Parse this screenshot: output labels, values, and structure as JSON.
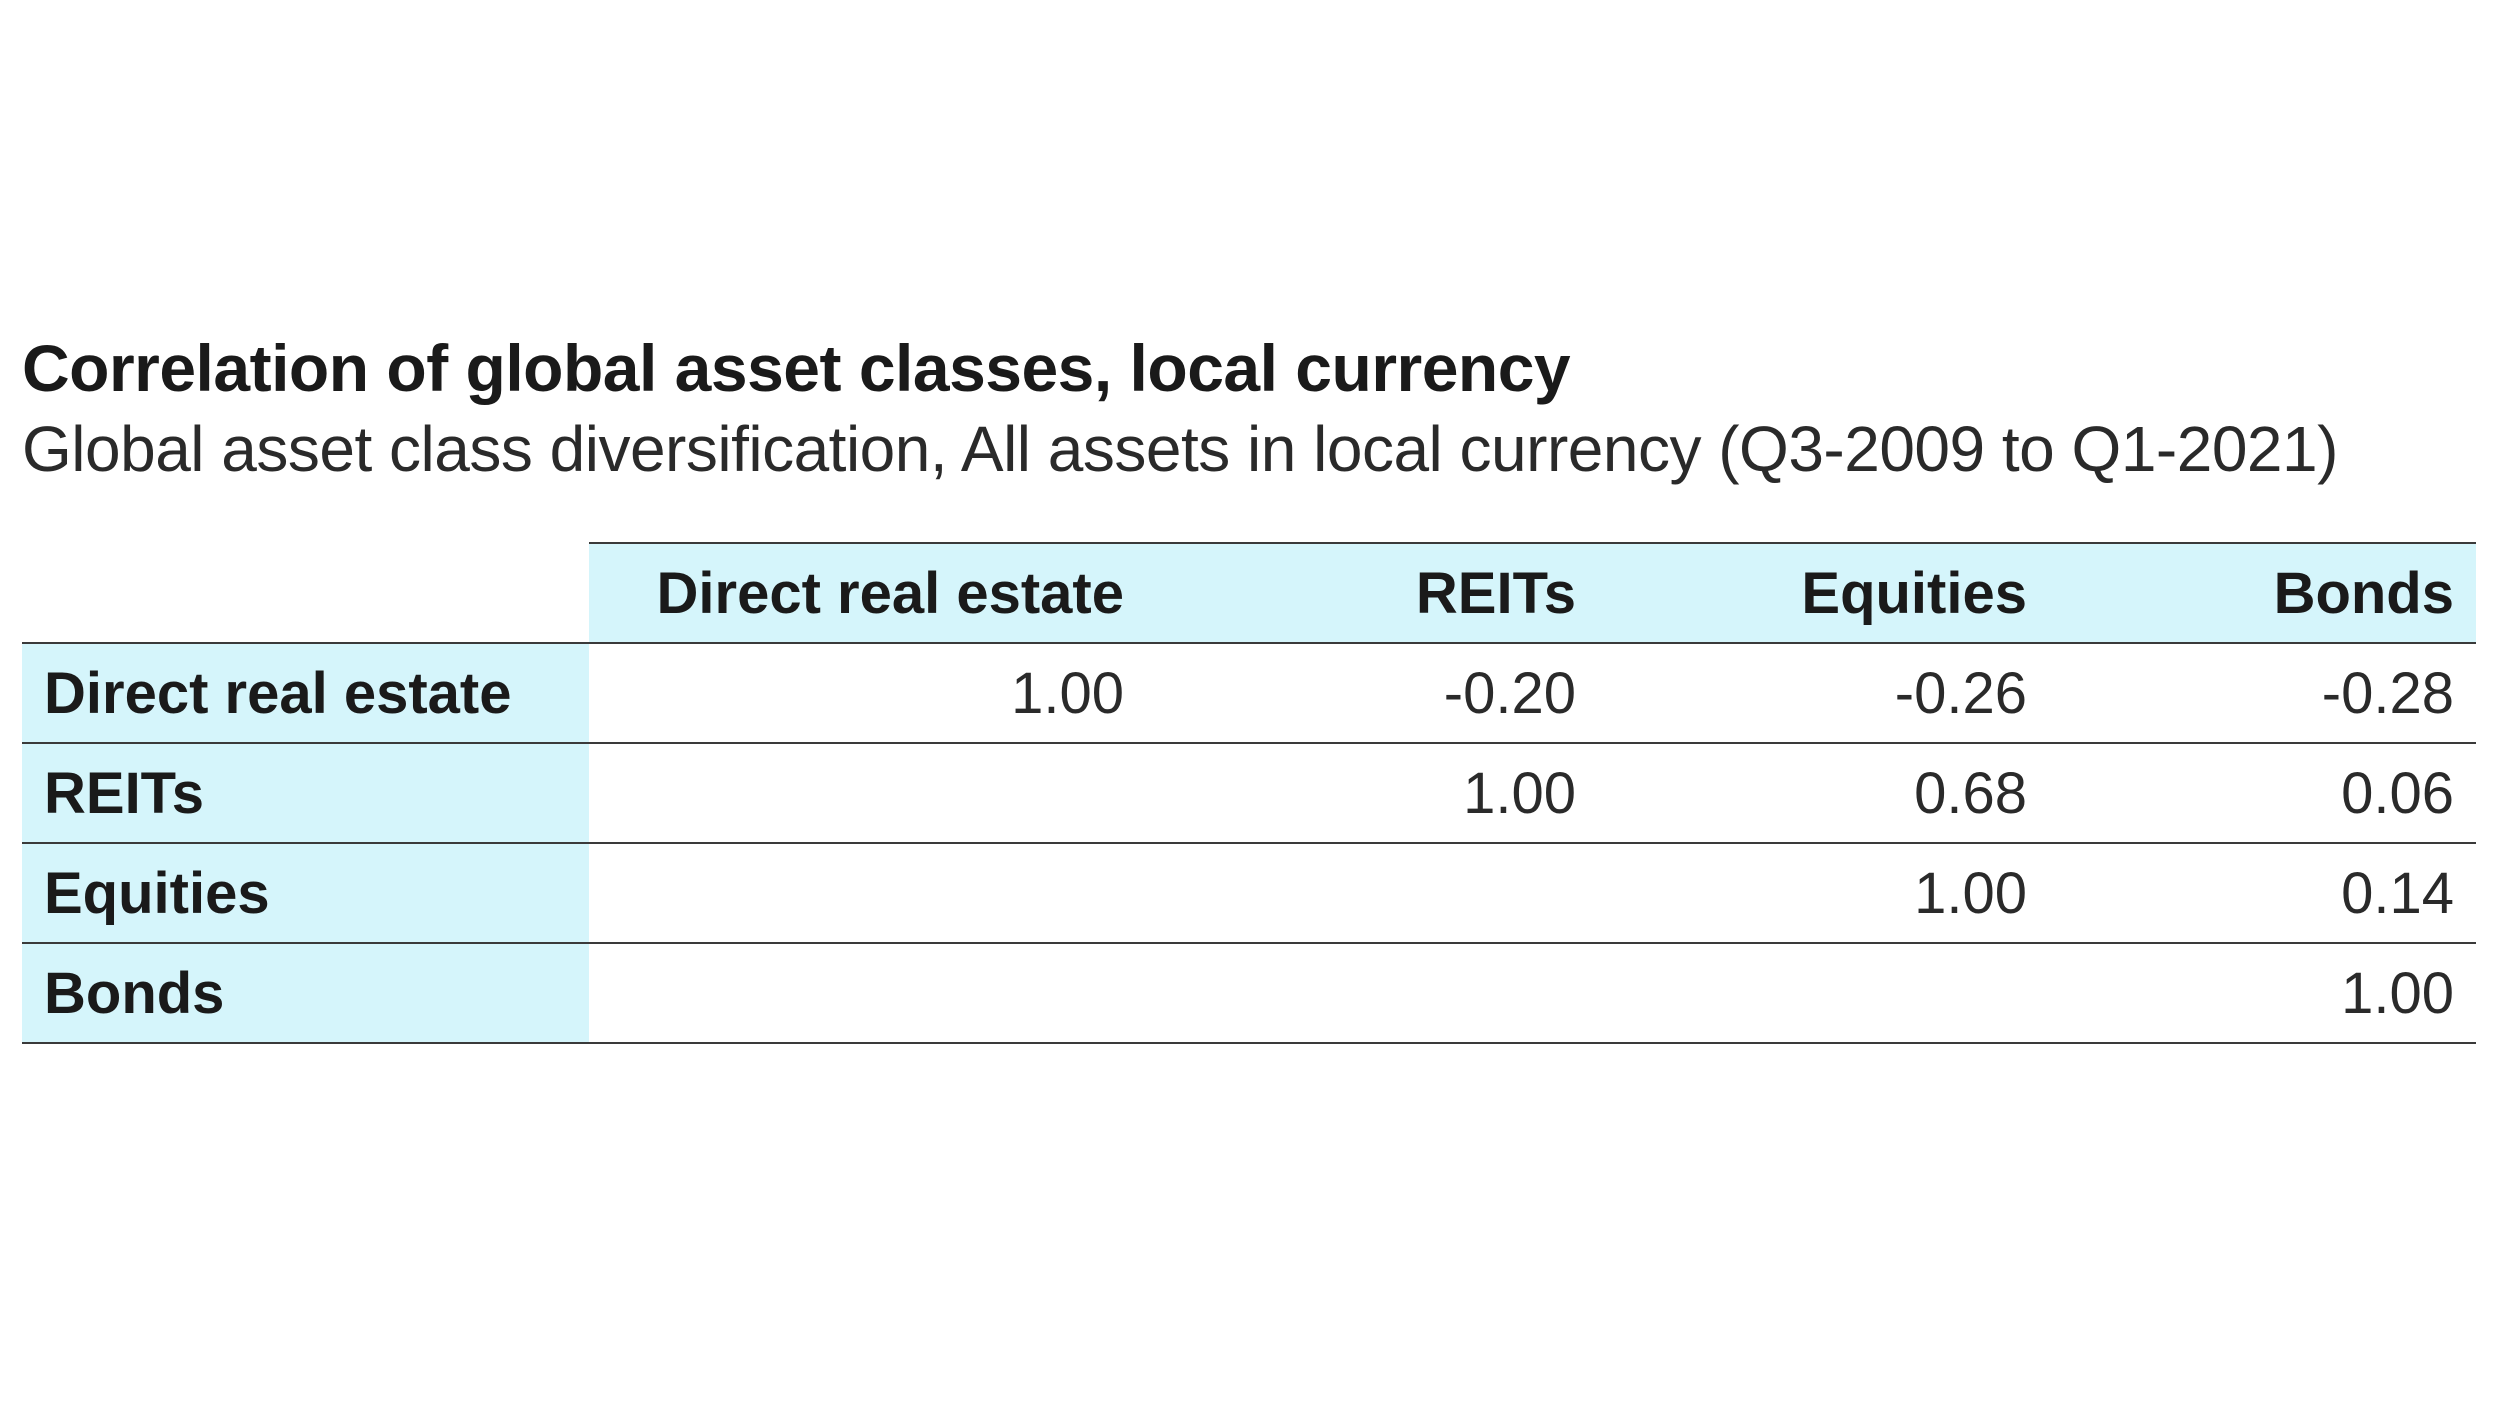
{
  "title": "Correlation of global asset classes, local currency",
  "subtitle": "Global asset class diversification, All assets in local currency (Q3-2009 to Q1-2021)",
  "table": {
    "columns": [
      "Direct real estate",
      "REITs",
      "Equities",
      "Bonds"
    ],
    "rows": [
      {
        "label": "Direct real estate",
        "cells": [
          "1.00",
          "-0.20",
          "-0.26",
          "-0.28"
        ]
      },
      {
        "label": "REITs",
        "cells": [
          "",
          "1.00",
          "0.68",
          "0.06"
        ]
      },
      {
        "label": "Equities",
        "cells": [
          "",
          "",
          "1.00",
          "0.14"
        ]
      },
      {
        "label": "Bonds",
        "cells": [
          "",
          "",
          "",
          "1.00"
        ]
      }
    ]
  },
  "colors": {
    "header_fill": "#d5f5fb",
    "rule": "#3a3a3a",
    "text": "#1a1a1a"
  }
}
